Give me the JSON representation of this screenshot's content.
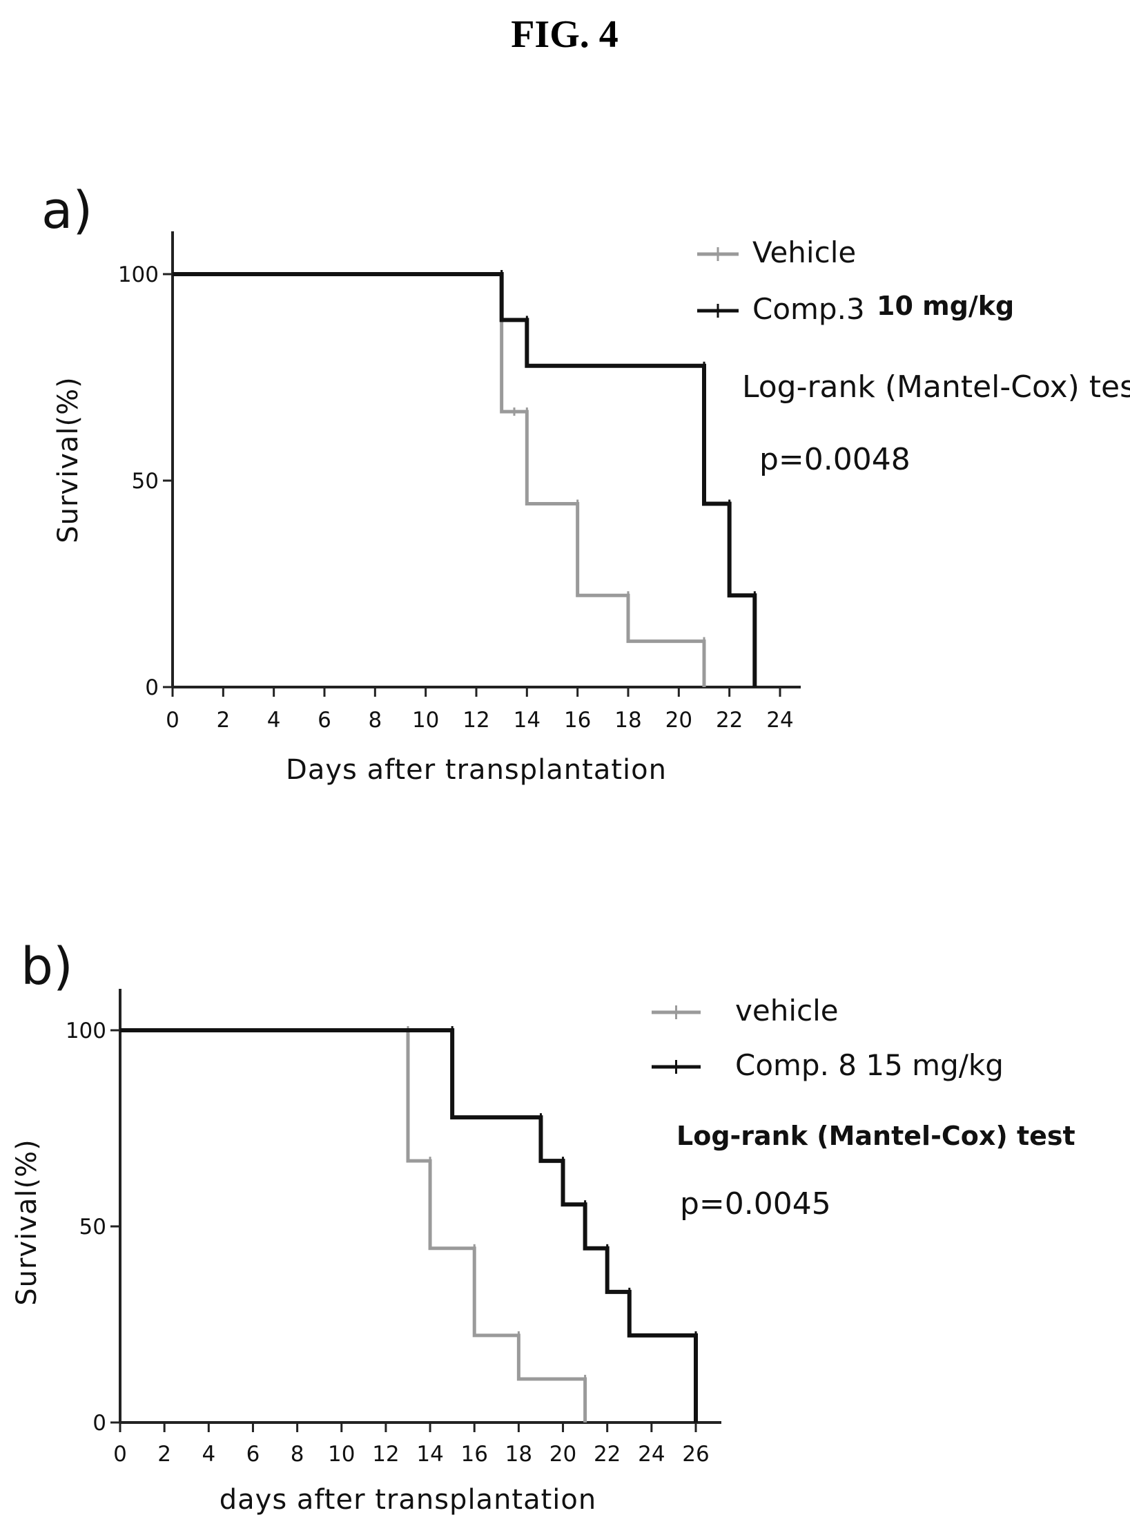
{
  "figure_title": "FIG. 4",
  "colors": {
    "treated": "#111111",
    "vehicle": "#9a9a9a",
    "axis": "#222222"
  },
  "chart_data": [
    {
      "type": "line",
      "panel_label": "a)",
      "xlabel": "Days after transplantation",
      "ylabel": "Survival(%)",
      "xlim": [
        0,
        24
      ],
      "ylim": [
        0,
        100
      ],
      "xticks": [
        0,
        2,
        4,
        6,
        8,
        10,
        12,
        14,
        16,
        18,
        20,
        22,
        24
      ],
      "yticks": [
        0,
        50,
        100
      ],
      "grid": false,
      "legend_position": "top-right",
      "series": [
        {
          "name": "Vehicle",
          "color_key": "vehicle",
          "x": [
            0,
            13,
            13.5,
            14,
            16,
            18,
            21
          ],
          "y": [
            100,
            66.7,
            66.7,
            44.4,
            22.2,
            11.1,
            0
          ]
        },
        {
          "name": "Comp.3 10 mg/kg",
          "color_key": "treated",
          "x": [
            0,
            13,
            14,
            21,
            22,
            23
          ],
          "y": [
            100,
            88.9,
            77.8,
            44.4,
            22.2,
            0
          ]
        }
      ],
      "legend": [
        {
          "text": "Vehicle",
          "extra": "",
          "color_key": "vehicle"
        },
        {
          "text": "Comp.3",
          "extra": "10 mg/kg",
          "color_key": "treated"
        }
      ],
      "test_label": "Log-rank (Mantel-Cox) tes",
      "p_value": "p=0.0048"
    },
    {
      "type": "line",
      "panel_label": "b)",
      "xlabel": "days after transplantation",
      "ylabel": "Survival(%)",
      "xlim": [
        0,
        26
      ],
      "ylim": [
        0,
        100
      ],
      "xticks": [
        0,
        2,
        4,
        6,
        8,
        10,
        12,
        14,
        16,
        18,
        20,
        22,
        24,
        26
      ],
      "yticks": [
        0,
        50,
        100
      ],
      "grid": false,
      "legend_position": "top-right",
      "series": [
        {
          "name": "vehicle",
          "color_key": "vehicle",
          "x": [
            0,
            13,
            14,
            16,
            18,
            21
          ],
          "y": [
            100,
            66.7,
            44.4,
            22.2,
            11.1,
            0
          ]
        },
        {
          "name": "Comp. 8 15 mg/kg",
          "color_key": "treated",
          "x": [
            0,
            15,
            19,
            20,
            21,
            22,
            23,
            26
          ],
          "y": [
            100,
            77.8,
            66.7,
            55.6,
            44.4,
            33.3,
            22.2,
            0
          ]
        }
      ],
      "legend": [
        {
          "text": "vehicle",
          "extra": "",
          "color_key": "vehicle"
        },
        {
          "text": "Comp. 8  15 mg/kg",
          "extra": "",
          "color_key": "treated"
        }
      ],
      "test_label": "Log-rank (Mantel-Cox) test",
      "p_value": "p=0.0045"
    }
  ]
}
